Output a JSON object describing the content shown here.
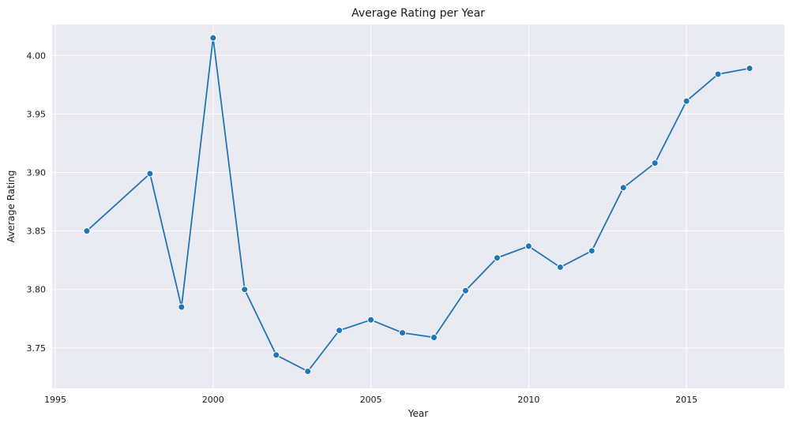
{
  "chart_data": {
    "type": "line",
    "title": "Average Rating per Year",
    "xlabel": "Year",
    "ylabel": "Average Rating",
    "xlim": [
      1994.9,
      2018.1
    ],
    "ylim": [
      3.7155,
      4.0265
    ],
    "xticks": [
      1995,
      2000,
      2005,
      2010,
      2015
    ],
    "xtick_labels": [
      "1995",
      "2000",
      "2005",
      "2010",
      "2015"
    ],
    "yticks": [
      3.75,
      3.8,
      3.85,
      3.9,
      3.95,
      4.0
    ],
    "ytick_labels": [
      "3.75",
      "3.80",
      "3.85",
      "3.90",
      "3.95",
      "4.00"
    ],
    "grid": true,
    "marker": "circle",
    "color": "#1f77b4",
    "background": "#eaeaf2",
    "x": [
      1996,
      1998,
      1999,
      2000,
      2001,
      2002,
      2003,
      2004,
      2005,
      2006,
      2007,
      2008,
      2009,
      2010,
      2011,
      2012,
      2013,
      2014,
      2015,
      2016,
      2017
    ],
    "values": [
      3.85,
      3.899,
      3.785,
      4.015,
      3.8,
      3.744,
      3.73,
      3.765,
      3.774,
      3.763,
      3.759,
      3.799,
      3.827,
      3.837,
      3.819,
      3.833,
      3.887,
      3.908,
      3.961,
      3.984,
      3.989
    ]
  }
}
